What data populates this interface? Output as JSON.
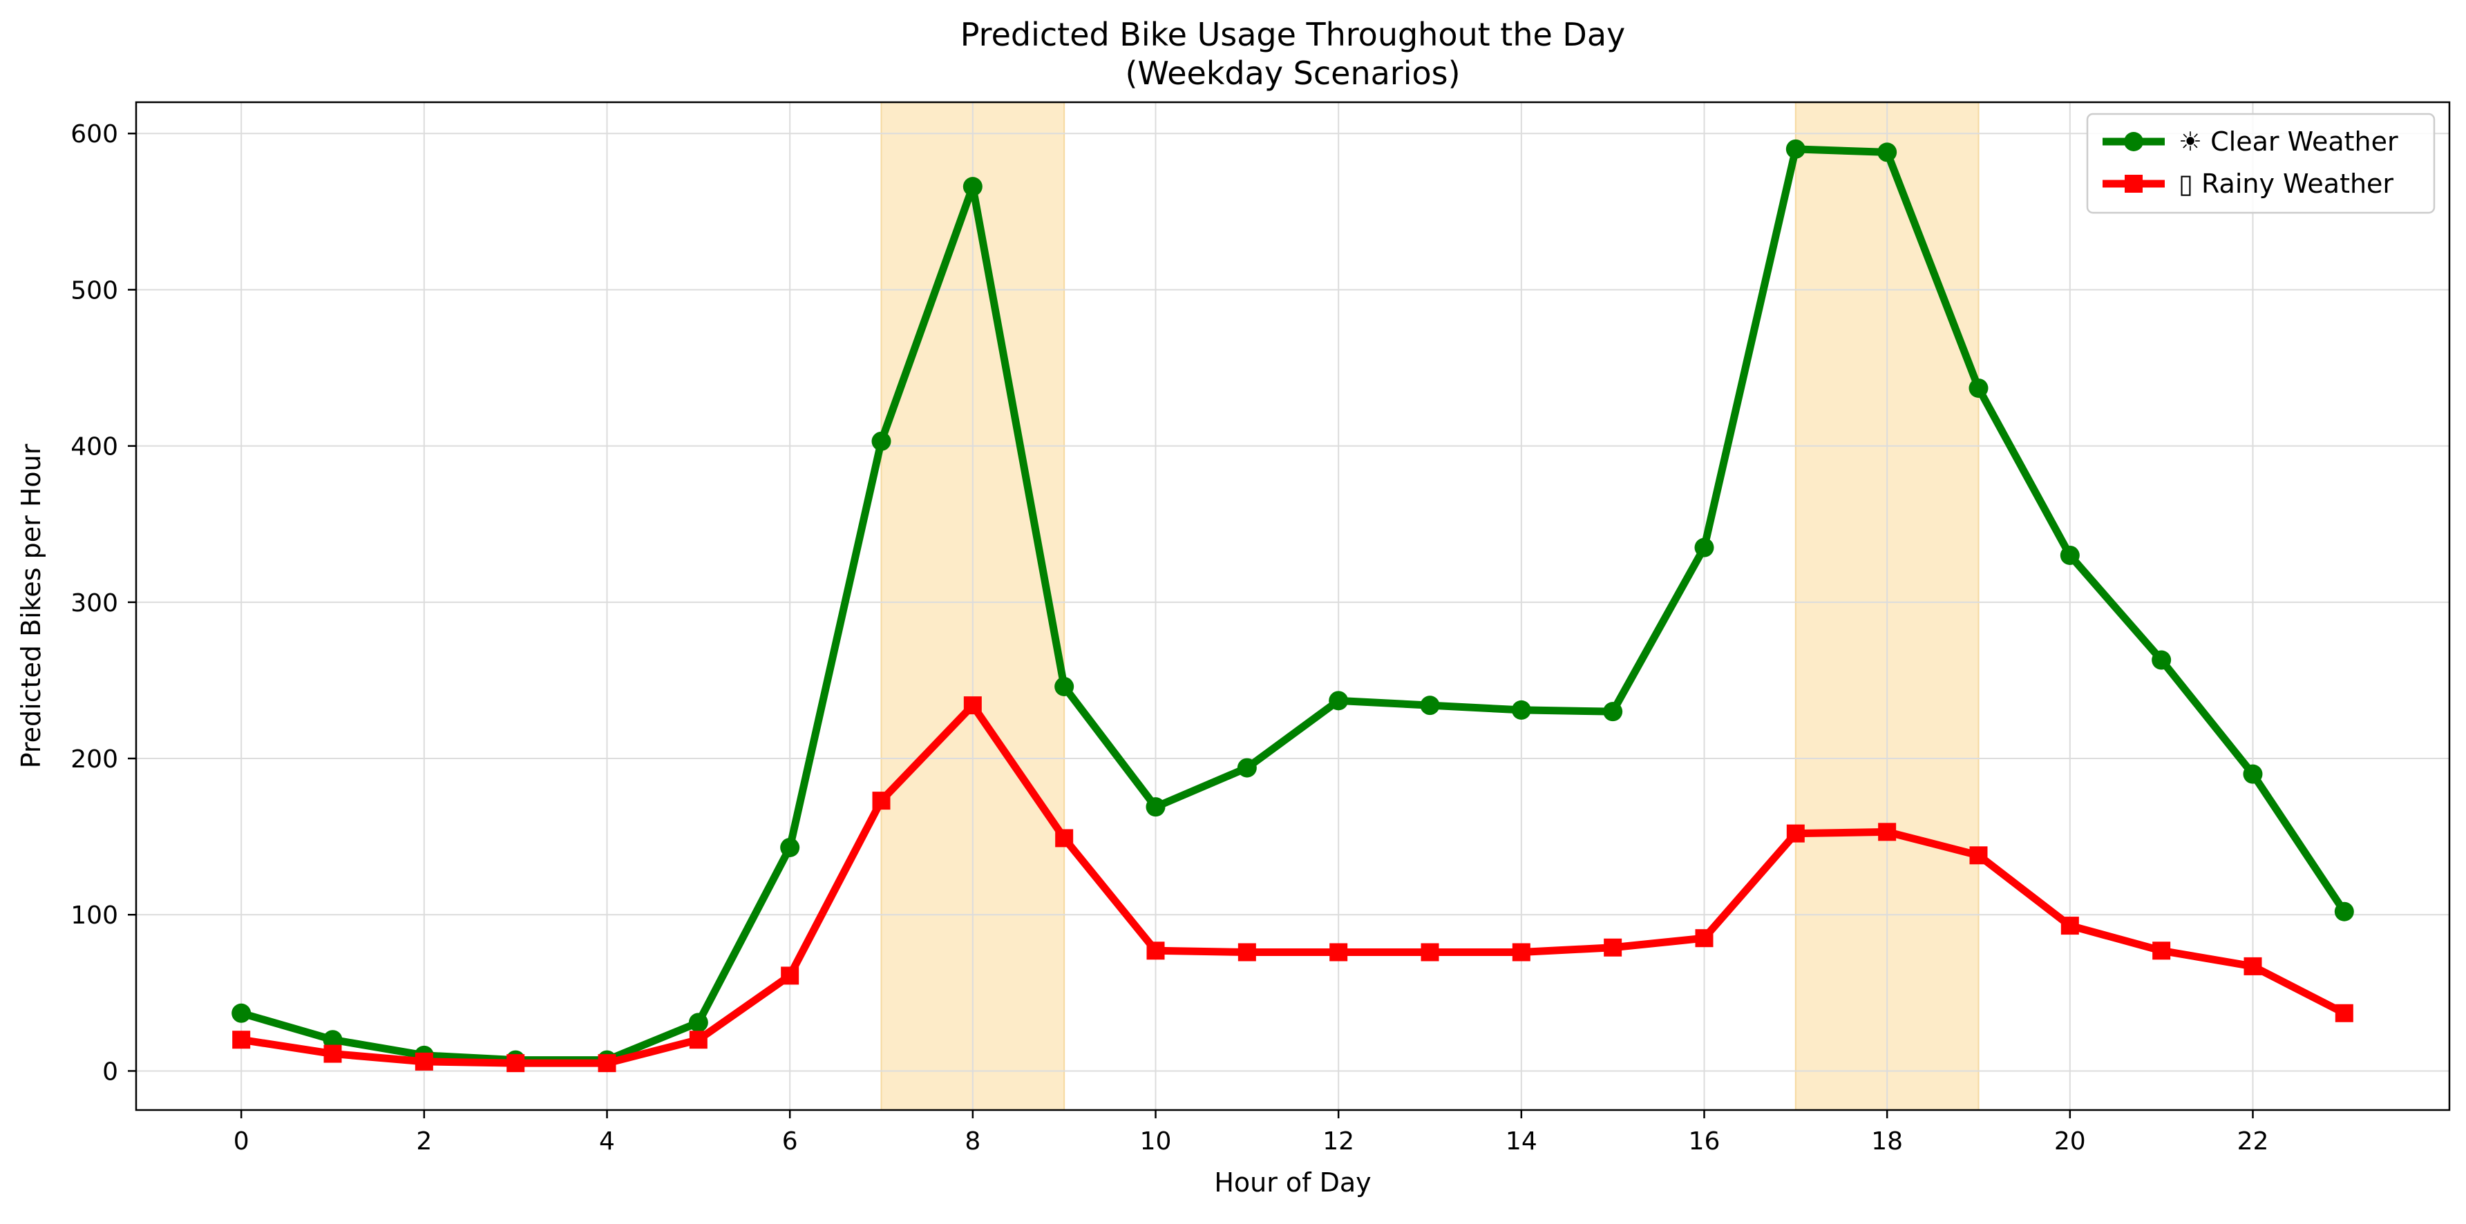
{
  "chart_data": {
    "type": "line",
    "title": "Predicted Bike Usage Throughout the Day",
    "subtitle": "(Weekday Scenarios)",
    "xlabel": "Hour of Day",
    "ylabel": "Predicted Bikes per Hour",
    "x": [
      0,
      1,
      2,
      3,
      4,
      5,
      6,
      7,
      8,
      9,
      10,
      11,
      12,
      13,
      14,
      15,
      16,
      17,
      18,
      19,
      20,
      21,
      22,
      23
    ],
    "xlim": [
      -1.15,
      24.15
    ],
    "ylim": [
      -25,
      620
    ],
    "xticks": [
      0,
      2,
      4,
      6,
      8,
      10,
      12,
      14,
      16,
      18,
      20,
      22
    ],
    "yticks": [
      0,
      100,
      200,
      300,
      400,
      500,
      600
    ],
    "grid": true,
    "legend_position": "top-right",
    "highlight_bands": [
      {
        "from": 7,
        "to": 9,
        "color": "#fdebc8"
      },
      {
        "from": 17,
        "to": 19,
        "color": "#fdebc8"
      }
    ],
    "series": [
      {
        "name": "☀ Clear Weather",
        "color": "#008000",
        "marker": "circle",
        "values": [
          37,
          20,
          10,
          7,
          7,
          31,
          143,
          403,
          566,
          246,
          169,
          194,
          237,
          234,
          231,
          230,
          335,
          590,
          588,
          437,
          330,
          263,
          190,
          102
        ]
      },
      {
        "name": "▯ Rainy Weather",
        "color": "#ff0000",
        "marker": "square",
        "values": [
          20,
          11,
          6,
          5,
          5,
          20,
          61,
          173,
          234,
          149,
          77,
          76,
          76,
          76,
          76,
          79,
          85,
          152,
          153,
          138,
          93,
          77,
          67,
          37
        ]
      }
    ]
  }
}
